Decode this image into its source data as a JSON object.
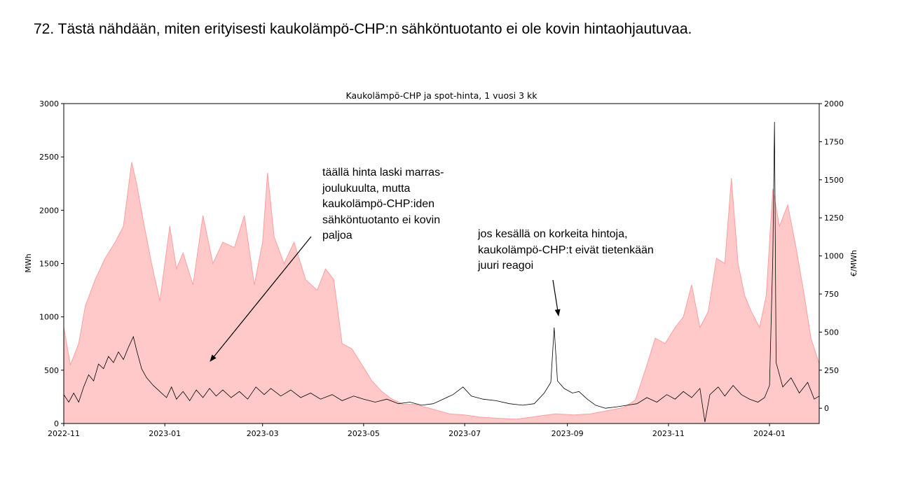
{
  "slide": {
    "title": "72. Tästä nähdään, miten erityisesti kaukolämpö-CHP:n sähköntuotanto ei ole kovin hintaohjautuvaa."
  },
  "colors": {
    "production": "#ffc9c9",
    "production_line": "#ff9f9f",
    "price": "#000000"
  },
  "annotations": [
    {
      "lines": [
        "täällä hinta laski marras-",
        "joulukuulta, mutta",
        "kaukolämpö-CHP:iden",
        "sähköntuotanto ei kovin",
        "paljoa"
      ]
    },
    {
      "lines": [
        "jos kesällä on korkeita hintoja,",
        "kaukolämpö-CHP:t eivät tietenkään",
        "juuri reagoi"
      ]
    }
  ],
  "chart_data": {
    "type": "area",
    "title": "Kaukolämpö-CHP ja spot-hinta, 1 vuosi 3 kk",
    "ylabel": "MWh",
    "ylabel_right": "€/MWh",
    "ylim": [
      0,
      3000
    ],
    "ylim_right": [
      -100,
      2000
    ],
    "xlim": [
      "2022-11-01",
      "2024-01-31"
    ],
    "yticks": [
      "0",
      "500",
      "1000",
      "1500",
      "2000",
      "2500",
      "3000"
    ],
    "yticks_right": [
      "0",
      "250",
      "500",
      "750",
      "1000",
      "1250",
      "1500",
      "1750",
      "2000"
    ],
    "xticks": [
      {
        "date": "2022-11-01",
        "label": "2022-11"
      },
      {
        "date": "2023-01-01",
        "label": "2023-01"
      },
      {
        "date": "2023-03-01",
        "label": "2023-03"
      },
      {
        "date": "2023-05-01",
        "label": "2023-05"
      },
      {
        "date": "2023-07-01",
        "label": "2023-07"
      },
      {
        "date": "2023-09-01",
        "label": "2023-09"
      },
      {
        "date": "2023-11-01",
        "label": "2023-11"
      },
      {
        "date": "2024-01-01",
        "label": "2024-01"
      }
    ],
    "series": [
      {
        "axis": "left",
        "style": "area",
        "points": [
          [
            "2022-11-01",
            900
          ],
          [
            "2022-11-05",
            550
          ],
          [
            "2022-11-10",
            750
          ],
          [
            "2022-11-14",
            1100
          ],
          [
            "2022-11-20",
            1350
          ],
          [
            "2022-11-26",
            1550
          ],
          [
            "2022-12-02",
            1700
          ],
          [
            "2022-12-07",
            1850
          ],
          [
            "2022-12-12",
            2450
          ],
          [
            "2022-12-15",
            2250
          ],
          [
            "2022-12-19",
            1900
          ],
          [
            "2022-12-24",
            1500
          ],
          [
            "2022-12-29",
            1150
          ],
          [
            "2023-01-04",
            1850
          ],
          [
            "2023-01-08",
            1450
          ],
          [
            "2023-01-12",
            1600
          ],
          [
            "2023-01-18",
            1300
          ],
          [
            "2023-01-24",
            1950
          ],
          [
            "2023-01-30",
            1500
          ],
          [
            "2023-02-05",
            1700
          ],
          [
            "2023-02-12",
            1650
          ],
          [
            "2023-02-18",
            1950
          ],
          [
            "2023-02-24",
            1300
          ],
          [
            "2023-03-01",
            1700
          ],
          [
            "2023-03-04",
            2350
          ],
          [
            "2023-03-08",
            1750
          ],
          [
            "2023-03-14",
            1500
          ],
          [
            "2023-03-20",
            1700
          ],
          [
            "2023-03-27",
            1350
          ],
          [
            "2023-04-03",
            1250
          ],
          [
            "2023-04-08",
            1450
          ],
          [
            "2023-04-13",
            1350
          ],
          [
            "2023-04-18",
            750
          ],
          [
            "2023-04-24",
            700
          ],
          [
            "2023-04-30",
            550
          ],
          [
            "2023-05-06",
            400
          ],
          [
            "2023-05-12",
            300
          ],
          [
            "2023-05-18",
            230
          ],
          [
            "2023-05-25",
            180
          ],
          [
            "2023-06-01",
            180
          ],
          [
            "2023-06-08",
            150
          ],
          [
            "2023-06-15",
            120
          ],
          [
            "2023-06-22",
            90
          ],
          [
            "2023-07-01",
            80
          ],
          [
            "2023-07-10",
            60
          ],
          [
            "2023-07-20",
            50
          ],
          [
            "2023-08-01",
            40
          ],
          [
            "2023-08-15",
            70
          ],
          [
            "2023-08-25",
            90
          ],
          [
            "2023-09-05",
            80
          ],
          [
            "2023-09-15",
            90
          ],
          [
            "2023-09-25",
            120
          ],
          [
            "2023-10-05",
            150
          ],
          [
            "2023-10-12",
            220
          ],
          [
            "2023-10-18",
            500
          ],
          [
            "2023-10-24",
            800
          ],
          [
            "2023-10-30",
            750
          ],
          [
            "2023-11-05",
            900
          ],
          [
            "2023-11-10",
            1000
          ],
          [
            "2023-11-15",
            1300
          ],
          [
            "2023-11-20",
            900
          ],
          [
            "2023-11-25",
            1050
          ],
          [
            "2023-11-30",
            1550
          ],
          [
            "2023-12-05",
            1500
          ],
          [
            "2023-12-09",
            2300
          ],
          [
            "2023-12-13",
            1500
          ],
          [
            "2023-12-17",
            1200
          ],
          [
            "2023-12-21",
            1050
          ],
          [
            "2023-12-26",
            900
          ],
          [
            "2023-12-30",
            1200
          ],
          [
            "2024-01-03",
            2200
          ],
          [
            "2024-01-07",
            1850
          ],
          [
            "2024-01-12",
            2050
          ],
          [
            "2024-01-17",
            1650
          ],
          [
            "2024-01-22",
            1200
          ],
          [
            "2024-01-26",
            800
          ],
          [
            "2024-01-31",
            560
          ]
        ]
      },
      {
        "axis": "right",
        "style": "line",
        "points": [
          [
            "2022-11-01",
            90
          ],
          [
            "2022-11-04",
            40
          ],
          [
            "2022-11-07",
            100
          ],
          [
            "2022-11-10",
            40
          ],
          [
            "2022-11-13",
            140
          ],
          [
            "2022-11-16",
            220
          ],
          [
            "2022-11-19",
            180
          ],
          [
            "2022-11-22",
            290
          ],
          [
            "2022-11-25",
            260
          ],
          [
            "2022-11-28",
            340
          ],
          [
            "2022-12-01",
            300
          ],
          [
            "2022-12-04",
            370
          ],
          [
            "2022-12-07",
            320
          ],
          [
            "2022-12-10",
            400
          ],
          [
            "2022-12-13",
            470
          ],
          [
            "2022-12-15",
            380
          ],
          [
            "2022-12-18",
            260
          ],
          [
            "2022-12-21",
            200
          ],
          [
            "2022-12-25",
            150
          ],
          [
            "2022-12-29",
            110
          ],
          [
            "2023-01-02",
            70
          ],
          [
            "2023-01-05",
            140
          ],
          [
            "2023-01-08",
            60
          ],
          [
            "2023-01-12",
            110
          ],
          [
            "2023-01-16",
            50
          ],
          [
            "2023-01-20",
            120
          ],
          [
            "2023-01-24",
            70
          ],
          [
            "2023-01-28",
            130
          ],
          [
            "2023-02-01",
            80
          ],
          [
            "2023-02-05",
            120
          ],
          [
            "2023-02-10",
            70
          ],
          [
            "2023-02-15",
            110
          ],
          [
            "2023-02-20",
            60
          ],
          [
            "2023-02-25",
            140
          ],
          [
            "2023-03-02",
            90
          ],
          [
            "2023-03-06",
            130
          ],
          [
            "2023-03-12",
            80
          ],
          [
            "2023-03-18",
            120
          ],
          [
            "2023-03-24",
            70
          ],
          [
            "2023-03-30",
            100
          ],
          [
            "2023-04-05",
            60
          ],
          [
            "2023-04-12",
            90
          ],
          [
            "2023-04-18",
            50
          ],
          [
            "2023-04-25",
            80
          ],
          [
            "2023-05-01",
            60
          ],
          [
            "2023-05-08",
            40
          ],
          [
            "2023-05-15",
            60
          ],
          [
            "2023-05-22",
            30
          ],
          [
            "2023-05-29",
            40
          ],
          [
            "2023-06-05",
            20
          ],
          [
            "2023-06-12",
            30
          ],
          [
            "2023-06-18",
            60
          ],
          [
            "2023-06-24",
            90
          ],
          [
            "2023-06-30",
            140
          ],
          [
            "2023-07-05",
            80
          ],
          [
            "2023-07-12",
            60
          ],
          [
            "2023-07-20",
            50
          ],
          [
            "2023-07-28",
            30
          ],
          [
            "2023-08-05",
            20
          ],
          [
            "2023-08-12",
            30
          ],
          [
            "2023-08-18",
            100
          ],
          [
            "2023-08-22",
            170
          ],
          [
            "2023-08-24",
            530
          ],
          [
            "2023-08-26",
            180
          ],
          [
            "2023-08-30",
            130
          ],
          [
            "2023-09-04",
            100
          ],
          [
            "2023-09-08",
            110
          ],
          [
            "2023-09-13",
            60
          ],
          [
            "2023-09-18",
            20
          ],
          [
            "2023-09-24",
            0
          ],
          [
            "2023-10-01",
            10
          ],
          [
            "2023-10-07",
            20
          ],
          [
            "2023-10-13",
            30
          ],
          [
            "2023-10-19",
            70
          ],
          [
            "2023-10-25",
            40
          ],
          [
            "2023-10-31",
            90
          ],
          [
            "2023-11-05",
            60
          ],
          [
            "2023-11-10",
            110
          ],
          [
            "2023-11-15",
            70
          ],
          [
            "2023-11-20",
            130
          ],
          [
            "2023-11-23",
            -90
          ],
          [
            "2023-11-26",
            90
          ],
          [
            "2023-12-01",
            140
          ],
          [
            "2023-12-05",
            80
          ],
          [
            "2023-12-10",
            150
          ],
          [
            "2023-12-15",
            90
          ],
          [
            "2023-12-20",
            60
          ],
          [
            "2023-12-25",
            40
          ],
          [
            "2023-12-29",
            70
          ],
          [
            "2024-01-01",
            150
          ],
          [
            "2024-01-03",
            1000
          ],
          [
            "2024-01-04",
            1880
          ],
          [
            "2024-01-05",
            300
          ],
          [
            "2024-01-09",
            140
          ],
          [
            "2024-01-14",
            200
          ],
          [
            "2024-01-19",
            100
          ],
          [
            "2024-01-24",
            170
          ],
          [
            "2024-01-28",
            60
          ],
          [
            "2024-01-31",
            80
          ]
        ]
      }
    ]
  }
}
